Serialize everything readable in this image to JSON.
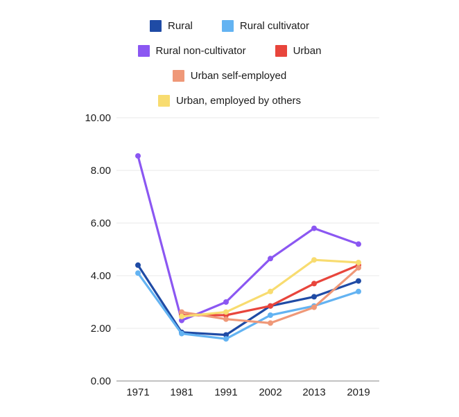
{
  "chart_data": {
    "type": "line",
    "x": [
      1971,
      1981,
      1991,
      2002,
      2013,
      2019
    ],
    "xtick_labels": [
      "1971",
      "1981",
      "1991",
      "2002",
      "2013",
      "2019"
    ],
    "ytick_values": [
      0,
      2,
      4,
      6,
      8,
      10
    ],
    "ytick_labels": [
      "0.00",
      "2.00",
      "4.00",
      "6.00",
      "8.00",
      "10.00"
    ],
    "ylim": [
      0,
      10
    ],
    "grid": true,
    "legend_position": "top",
    "series": [
      {
        "name": "Rural",
        "color": "#1f4ba5",
        "values": [
          4.4,
          1.85,
          1.75,
          2.85,
          3.2,
          3.8
        ]
      },
      {
        "name": "Rural cultivator",
        "color": "#63b3f2",
        "values": [
          4.1,
          1.8,
          1.6,
          2.5,
          2.85,
          3.4
        ]
      },
      {
        "name": "Rural non-cultivator",
        "color": "#8b57f2",
        "values": [
          8.55,
          2.3,
          3.0,
          4.65,
          5.8,
          5.2
        ]
      },
      {
        "name": "Urban",
        "color": "#e8453c",
        "values": [
          null,
          2.5,
          2.5,
          2.85,
          3.7,
          4.4
        ]
      },
      {
        "name": "Urban self-employed",
        "color": "#ef9878",
        "values": [
          null,
          2.62,
          2.35,
          2.2,
          2.8,
          4.3
        ]
      },
      {
        "name": "Urban, employed by others",
        "color": "#f8dc70",
        "values": [
          null,
          2.45,
          2.62,
          3.4,
          4.6,
          4.5
        ]
      }
    ],
    "legend_rows": [
      [
        "Rural",
        "Rural cultivator"
      ],
      [
        "Rural non-cultivator",
        "Urban"
      ],
      [
        "Urban self-employed"
      ],
      [
        "Urban, employed by others"
      ]
    ]
  },
  "colors": {
    "background": "#ffffff",
    "gridline": "#eaeaea",
    "axis_line": "#c2c2c2",
    "tick_text": "#1b1b1b"
  }
}
